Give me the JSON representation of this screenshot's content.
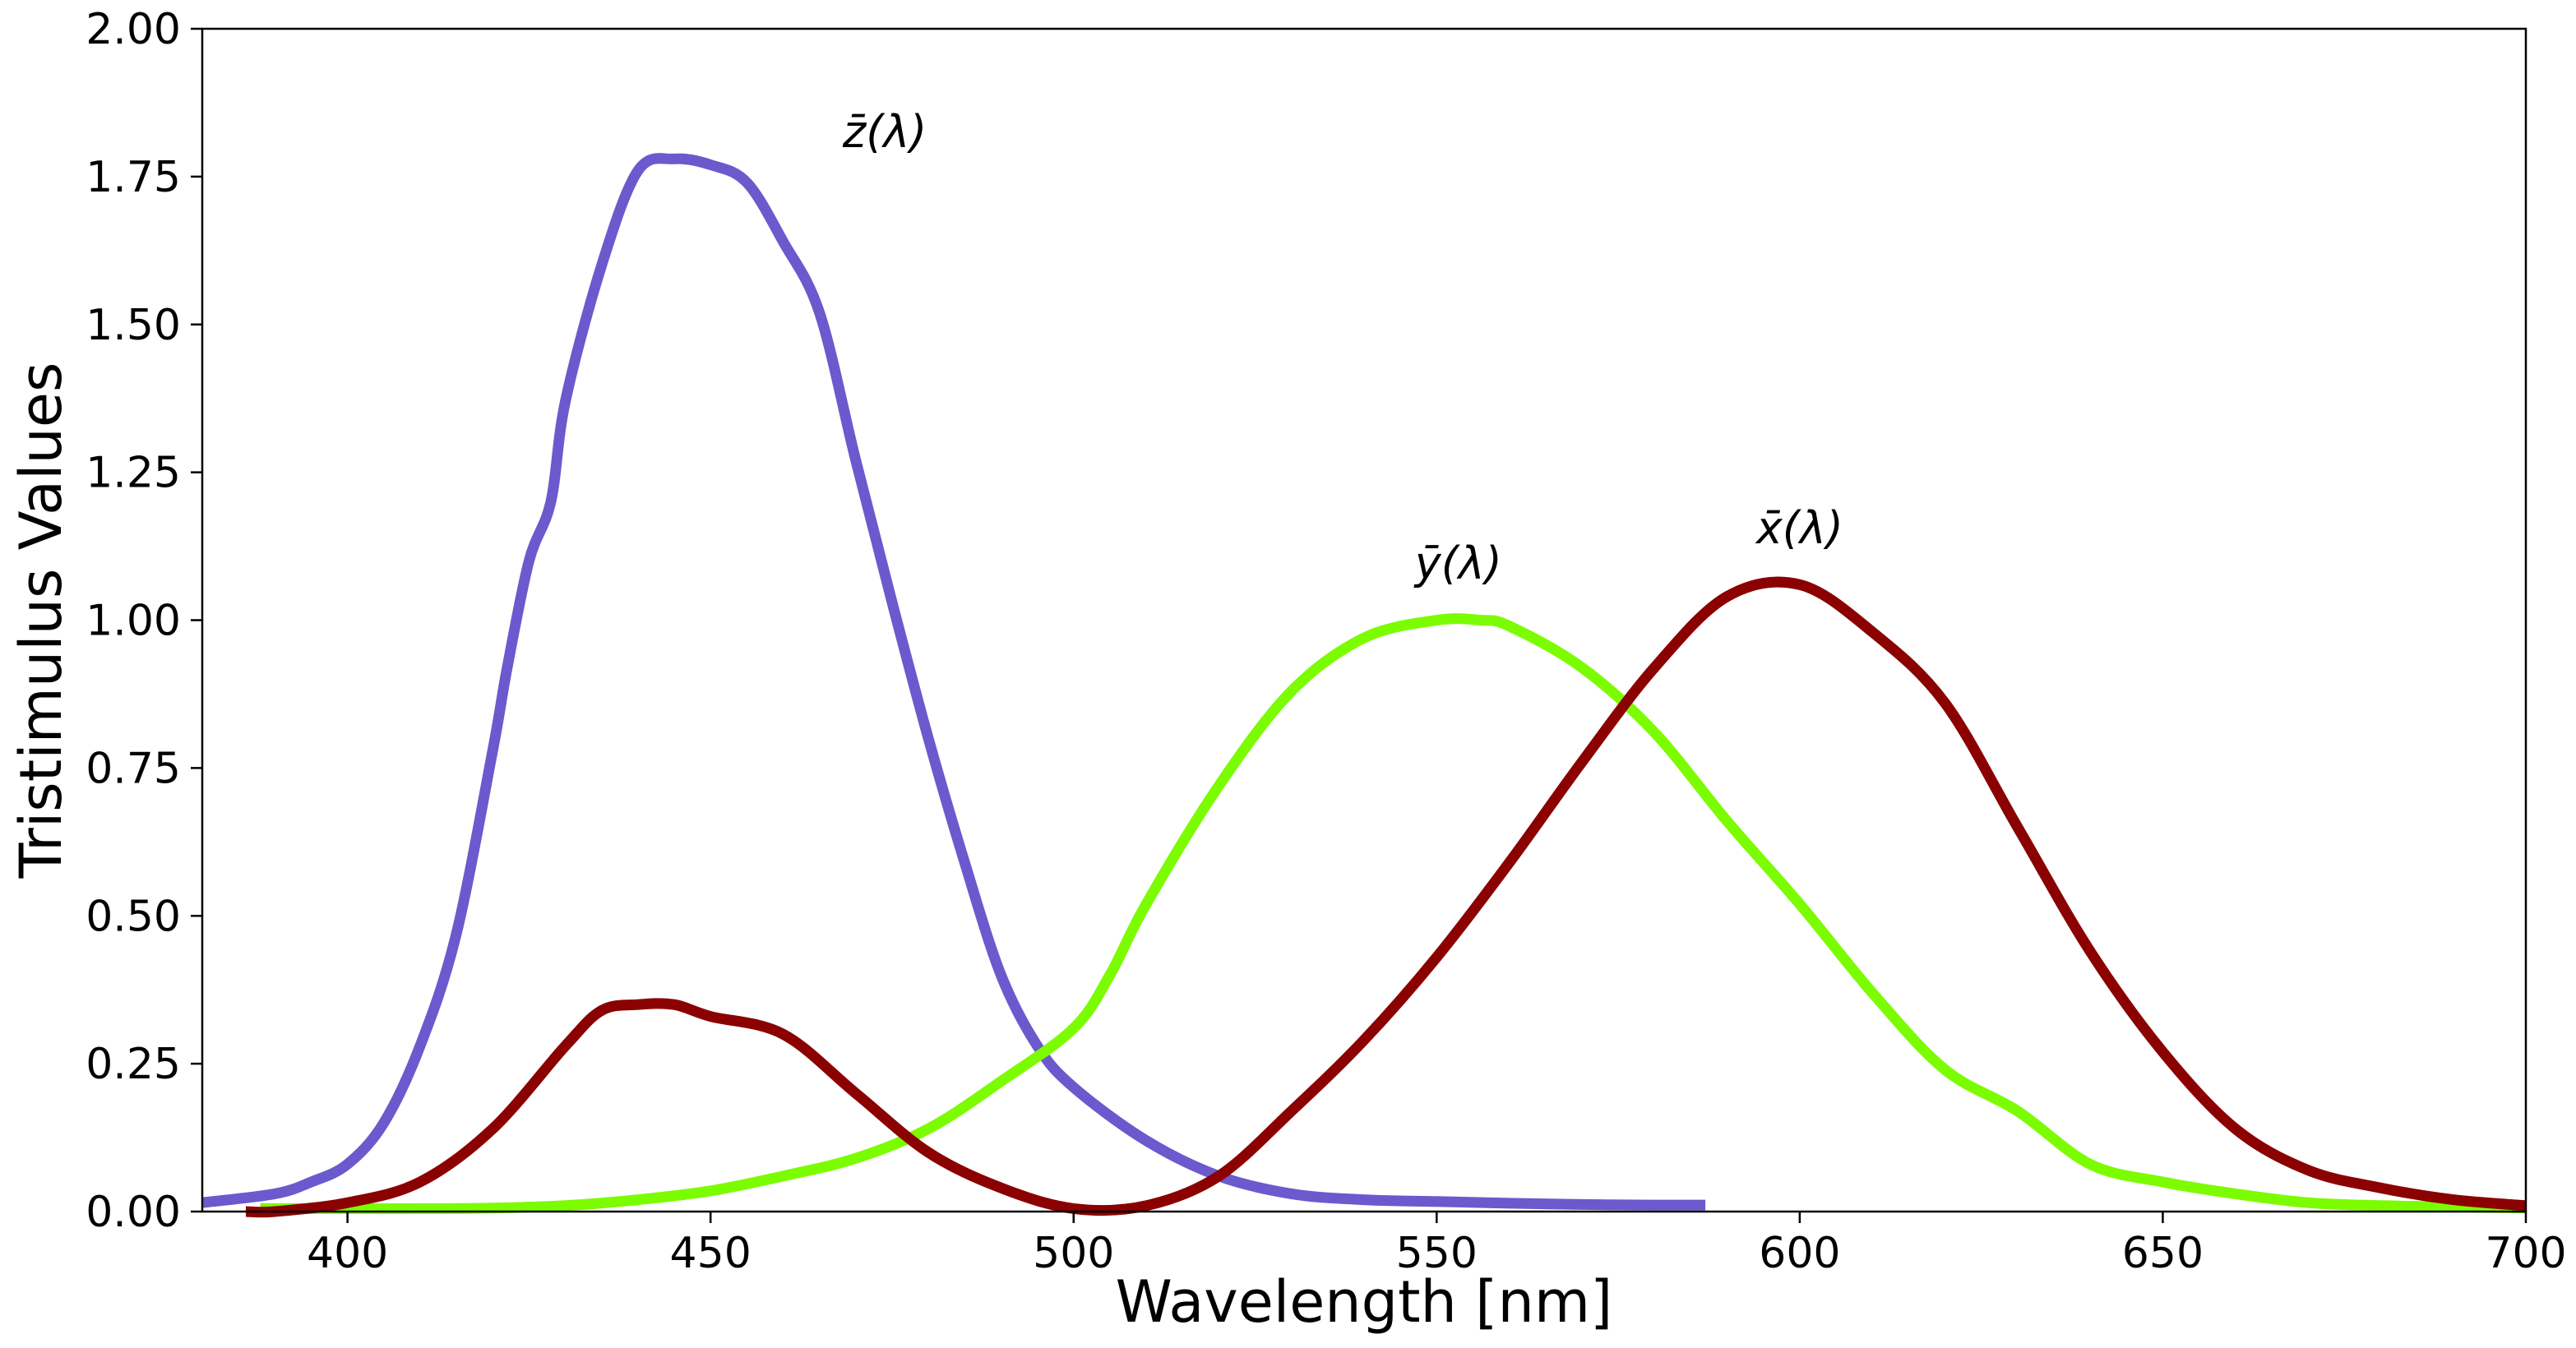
{
  "chart_data": {
    "type": "line",
    "title": "",
    "xlabel": "Wavelength [nm]",
    "ylabel": "Tristimulus Values",
    "xlim": [
      380,
      700
    ],
    "ylim": [
      0.0,
      2.0
    ],
    "grid": false,
    "x_ticks": [
      400,
      450,
      500,
      550,
      600,
      650,
      700
    ],
    "x_tick_labels": [
      "400",
      "450",
      "500",
      "550",
      "600",
      "650",
      "700"
    ],
    "y_ticks": [
      0.0,
      0.25,
      0.5,
      0.75,
      1.0,
      1.25,
      1.5,
      1.75,
      2.0
    ],
    "y_tick_labels": [
      "0.00",
      "0.25",
      "0.50",
      "0.75",
      "1.00",
      "1.25",
      "1.50",
      "1.75",
      "2.00"
    ],
    "series": [
      {
        "name": "z-bar",
        "label": "z̄(λ)",
        "color": "#6a5acd",
        "label_at": [
          474,
          1.8
        ],
        "x": [
          380,
          390,
          395,
          400,
          405,
          410,
          415,
          420,
          422,
          425,
          428,
          430,
          435,
          440,
          445,
          450,
          455,
          460,
          465,
          470,
          475,
          480,
          485,
          490,
          495,
          500,
          510,
          520,
          530,
          540,
          550,
          560,
          570,
          580,
          587
        ],
        "y": [
          0.015,
          0.03,
          0.05,
          0.08,
          0.15,
          0.28,
          0.47,
          0.78,
          0.92,
          1.1,
          1.2,
          1.37,
          1.6,
          1.76,
          1.78,
          1.77,
          1.74,
          1.64,
          1.52,
          1.27,
          1.03,
          0.8,
          0.59,
          0.4,
          0.28,
          0.21,
          0.12,
          0.06,
          0.03,
          0.02,
          0.017,
          0.014,
          0.012,
          0.011,
          0.011
        ]
      },
      {
        "name": "y-bar",
        "label": "ȳ(λ)",
        "color": "#7cfc00",
        "label_at": [
          553,
          1.07
        ],
        "x": [
          388,
          400,
          410,
          420,
          430,
          440,
          450,
          460,
          470,
          480,
          490,
          500,
          505,
          510,
          520,
          530,
          540,
          550,
          556,
          560,
          570,
          580,
          590,
          600,
          610,
          620,
          630,
          640,
          650,
          660,
          670,
          680,
          690,
          700
        ],
        "y": [
          0.005,
          0.005,
          0.005,
          0.006,
          0.01,
          0.02,
          0.035,
          0.06,
          0.09,
          0.14,
          0.22,
          0.31,
          0.4,
          0.52,
          0.72,
          0.88,
          0.97,
          1.0,
          1.0,
          0.99,
          0.92,
          0.81,
          0.66,
          0.52,
          0.37,
          0.24,
          0.17,
          0.08,
          0.05,
          0.03,
          0.015,
          0.01,
          0.008,
          0.006
        ]
      },
      {
        "name": "x-bar",
        "label": "x̄(λ)",
        "color": "#8b0000",
        "label_at": [
          600,
          1.13
        ],
        "x": [
          386,
          390,
          400,
          410,
          420,
          430,
          435,
          440,
          445,
          450,
          460,
          470,
          480,
          490,
          500,
          510,
          520,
          530,
          540,
          550,
          560,
          570,
          580,
          590,
          600,
          610,
          620,
          630,
          640,
          650,
          660,
          670,
          680,
          690,
          700
        ],
        "y": [
          0.0,
          0.0,
          0.015,
          0.05,
          0.14,
          0.28,
          0.34,
          0.35,
          0.35,
          0.33,
          0.3,
          0.2,
          0.1,
          0.04,
          0.005,
          0.01,
          0.06,
          0.17,
          0.29,
          0.43,
          0.59,
          0.76,
          0.92,
          1.04,
          1.06,
          0.98,
          0.86,
          0.65,
          0.44,
          0.27,
          0.14,
          0.07,
          0.04,
          0.02,
          0.01
        ]
      }
    ]
  }
}
